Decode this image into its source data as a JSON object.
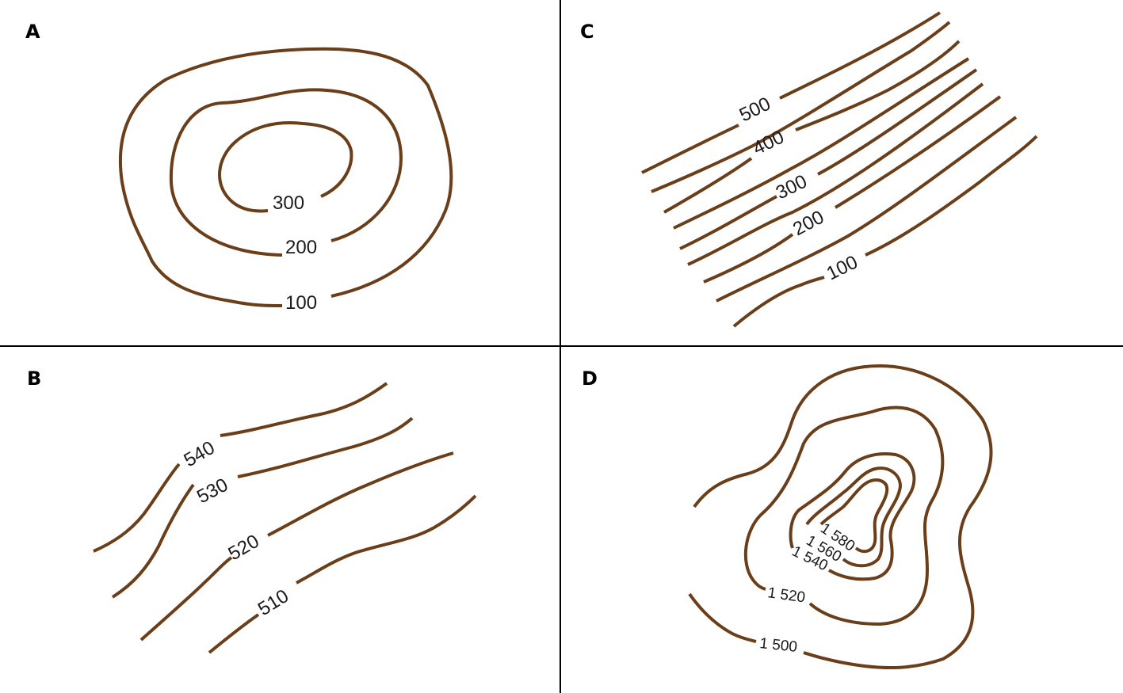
{
  "panels": {
    "A": {
      "letter": "A",
      "labels": [
        "300",
        "200",
        "100"
      ]
    },
    "B": {
      "letter": "B",
      "labels": [
        "540",
        "530",
        "520",
        "510"
      ]
    },
    "C": {
      "letter": "C",
      "labels": [
        "500",
        "400",
        "300",
        "200",
        "100"
      ]
    },
    "D": {
      "letter": "D",
      "labels": [
        "1 580",
        "1 560",
        "1 540",
        "1 520",
        "1 500"
      ]
    }
  },
  "colors": {
    "contour": "#6b3e1a",
    "divider": "#000000",
    "background": "#ffffff"
  }
}
